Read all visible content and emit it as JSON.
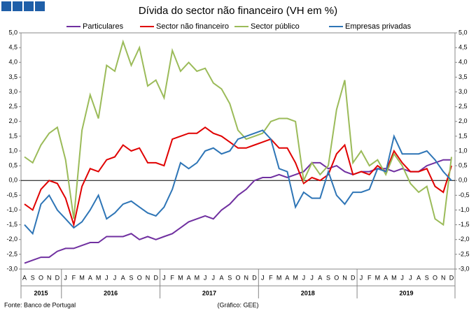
{
  "chart_data": {
    "type": "line",
    "title": "Dívida do sector não financeiro (VH em %)",
    "categories": [
      "A",
      "S",
      "O",
      "N",
      "D",
      "J",
      "F",
      "M",
      "A",
      "M",
      "J",
      "J",
      "A",
      "S",
      "O",
      "N",
      "D",
      "J",
      "F",
      "M",
      "A",
      "M",
      "J",
      "J",
      "A",
      "S",
      "O",
      "N",
      "D",
      "J",
      "F",
      "M",
      "A",
      "M",
      "J",
      "J",
      "A",
      "S",
      "O",
      "N",
      "D",
      "J",
      "F",
      "M",
      "A",
      "M",
      "J",
      "J",
      "A",
      "S",
      "O",
      "N",
      "D"
    ],
    "years": [
      "2015",
      "2016",
      "2017",
      "2018",
      "2019"
    ],
    "series": [
      {
        "name": "Particulares",
        "color": "#7030a0",
        "values": [
          -2.8,
          -2.7,
          -2.6,
          -2.6,
          -2.4,
          -2.3,
          -2.3,
          -2.2,
          -2.1,
          -2.1,
          -1.9,
          -1.9,
          -1.9,
          -1.8,
          -2.0,
          -1.9,
          -2.0,
          -1.9,
          -1.8,
          -1.6,
          -1.4,
          -1.3,
          -1.2,
          -1.3,
          -1.0,
          -0.8,
          -0.5,
          -0.3,
          0.0,
          0.1,
          0.1,
          0.2,
          0.1,
          0.2,
          0.3,
          0.6,
          0.6,
          0.4,
          0.5,
          0.3,
          0.2,
          0.3,
          0.3,
          0.4,
          0.4,
          0.3,
          0.4,
          0.3,
          0.3,
          0.5,
          0.6,
          0.7,
          0.7
        ]
      },
      {
        "name": "Sector não financeiro",
        "color": "#e00000",
        "values": [
          -0.8,
          -1.0,
          -0.3,
          0.0,
          -0.1,
          -0.6,
          -1.5,
          -0.2,
          0.4,
          0.3,
          0.7,
          0.8,
          1.2,
          1.0,
          1.1,
          0.6,
          0.6,
          0.5,
          1.4,
          1.5,
          1.6,
          1.6,
          1.8,
          1.6,
          1.5,
          1.3,
          1.1,
          1.1,
          1.2,
          1.3,
          1.4,
          1.1,
          1.1,
          0.6,
          -0.1,
          0.1,
          0.0,
          0.2,
          0.9,
          1.2,
          0.2,
          0.3,
          0.2,
          0.5,
          0.3,
          1.0,
          0.6,
          0.3,
          0.3,
          0.4,
          -0.2,
          -0.4,
          0.5
        ]
      },
      {
        "name": "Sector público",
        "color": "#9bbb59",
        "values": [
          0.8,
          0.6,
          1.2,
          1.6,
          1.8,
          0.7,
          -1.3,
          1.7,
          2.9,
          2.1,
          3.9,
          3.7,
          4.7,
          3.9,
          4.5,
          3.2,
          3.4,
          2.8,
          4.4,
          3.7,
          4.0,
          3.7,
          3.8,
          3.3,
          3.1,
          2.6,
          1.7,
          1.4,
          1.5,
          1.6,
          2.0,
          2.1,
          2.1,
          2.0,
          0.0,
          0.6,
          0.2,
          0.5,
          2.4,
          3.4,
          0.6,
          1.0,
          0.5,
          0.7,
          0.2,
          0.9,
          0.5,
          -0.1,
          -0.4,
          -0.2,
          -1.3,
          -1.5,
          0.8
        ]
      },
      {
        "name": "Empresas privadas",
        "color": "#2e75b6",
        "values": [
          -1.5,
          -1.8,
          -0.8,
          -0.5,
          -1.0,
          -1.3,
          -1.6,
          -1.4,
          -1.0,
          -0.5,
          -1.3,
          -1.1,
          -0.8,
          -0.7,
          -0.9,
          -1.1,
          -1.2,
          -0.9,
          -0.3,
          0.6,
          0.4,
          0.6,
          1.0,
          1.1,
          0.9,
          1.0,
          1.4,
          1.5,
          1.6,
          1.7,
          1.4,
          0.4,
          0.3,
          -0.9,
          -0.4,
          -0.6,
          -0.6,
          0.3,
          -0.5,
          -0.8,
          -0.4,
          -0.4,
          -0.3,
          0.4,
          0.3,
          1.5,
          0.9,
          0.9,
          0.9,
          1.0,
          0.7,
          0.3,
          0.0
        ]
      }
    ],
    "ylim": [
      -3,
      5
    ],
    "yticks": [
      {
        "value": 5,
        "label": "5,0"
      },
      {
        "value": 4.5,
        "label": "4,5"
      },
      {
        "value": 4,
        "label": "4,0"
      },
      {
        "value": 3.5,
        "label": "3,5"
      },
      {
        "value": 3,
        "label": "3,0"
      },
      {
        "value": 2.5,
        "label": "2,5"
      },
      {
        "value": 2,
        "label": "2,0"
      },
      {
        "value": 1.5,
        "label": "1,5"
      },
      {
        "value": 1,
        "label": "1,0"
      },
      {
        "value": 0.5,
        "label": "0,5"
      },
      {
        "value": 0,
        "label": "0,0"
      },
      {
        "value": -0.5,
        "label": "-0,5"
      },
      {
        "value": -1,
        "label": "-1,0"
      },
      {
        "value": -1.5,
        "label": "-1,5"
      },
      {
        "value": -2,
        "label": "-2,0"
      },
      {
        "value": -2.5,
        "label": "-2,5"
      },
      {
        "value": -3,
        "label": "-3,0"
      }
    ],
    "y2lim": [
      -3,
      5
    ],
    "y2ticks": [
      {
        "value": 5,
        "label": "5,0"
      },
      {
        "value": 4.5,
        "label": "4,5"
      },
      {
        "value": 4,
        "label": "4,0"
      },
      {
        "value": 3.5,
        "label": "3,5"
      },
      {
        "value": 3,
        "label": "3,0"
      },
      {
        "value": 2.5,
        "label": "2,5"
      },
      {
        "value": 2,
        "label": "2,0"
      },
      {
        "value": 1.5,
        "label": "1,5"
      },
      {
        "value": 1,
        "label": "1,0"
      },
      {
        "value": 0.5,
        "label": "0,5"
      },
      {
        "value": 0,
        "label": "0,0"
      },
      {
        "value": -0.5,
        "label": "-0,5"
      },
      {
        "value": -1,
        "label": "-1,0"
      },
      {
        "value": -1.5,
        "label": "-1,5"
      },
      {
        "value": -2,
        "label": "-2,0"
      },
      {
        "value": -2.5,
        "label": "-2,5"
      },
      {
        "value": -3,
        "label": "-3,0"
      }
    ],
    "source": "Fonte: Banco de Portugal",
    "credit": "(Gráfico: GEE)"
  }
}
